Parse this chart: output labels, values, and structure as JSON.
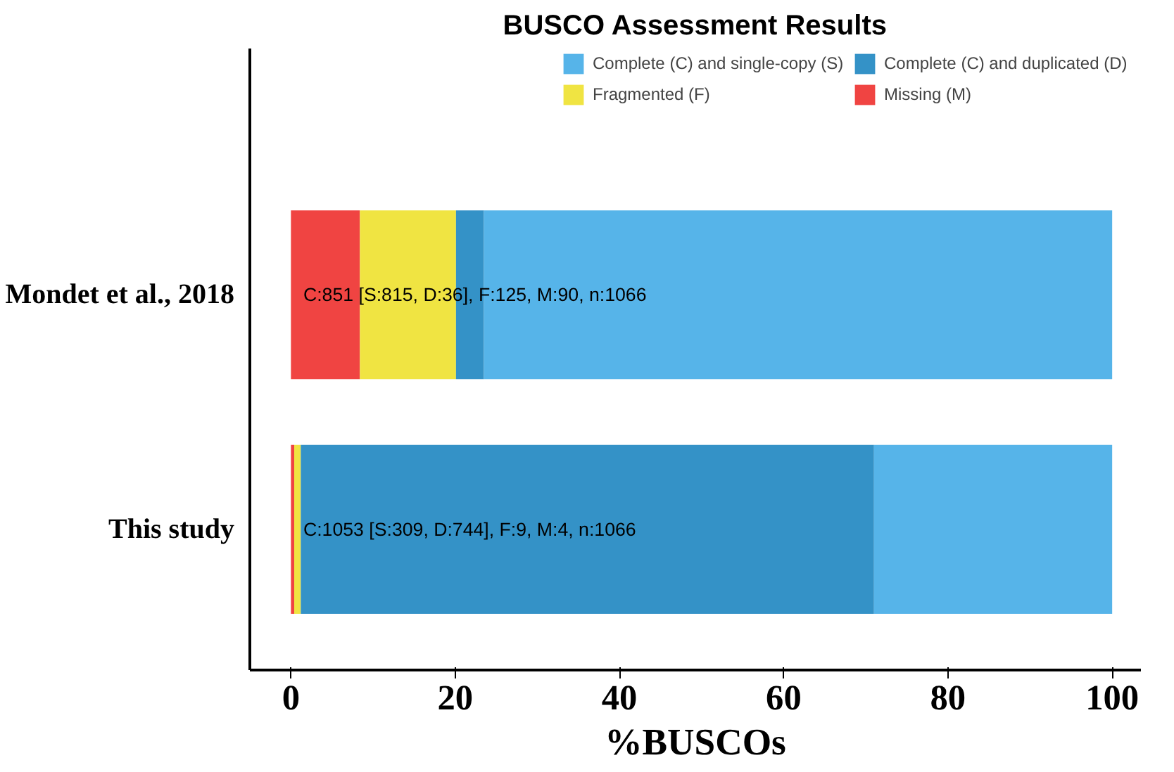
{
  "chart_data": {
    "type": "bar",
    "title": "BUSCO Assessment Results",
    "xlabel": "%BUSCOs",
    "orientation": "horizontal",
    "stacked": true,
    "categories": [
      "Mondet et al., 2018",
      "This study"
    ],
    "series": [
      {
        "name": "Missing (M)",
        "color": "#f04442",
        "values": [
          8.4,
          0.4
        ]
      },
      {
        "name": "Fragmented (F)",
        "color": "#f0e442",
        "values": [
          11.7,
          0.8
        ]
      },
      {
        "name": "Complete (C) and duplicated (D)",
        "color": "#3492c7",
        "values": [
          3.4,
          69.8
        ]
      },
      {
        "name": "Complete (C) and single-copy (S)",
        "color": "#56b4e9",
        "values": [
          76.5,
          29.0
        ]
      }
    ],
    "xlim": [
      -5,
      103.5
    ],
    "xticks": [
      0,
      20,
      40,
      60,
      80,
      100
    ],
    "grid": false,
    "legend": "top",
    "annotations": [
      "C:851 [S:815, D:36], F:125, M:90, n:1066",
      "C:1053 [S:309, D:744], F:9, M:4, n:1066"
    ]
  }
}
